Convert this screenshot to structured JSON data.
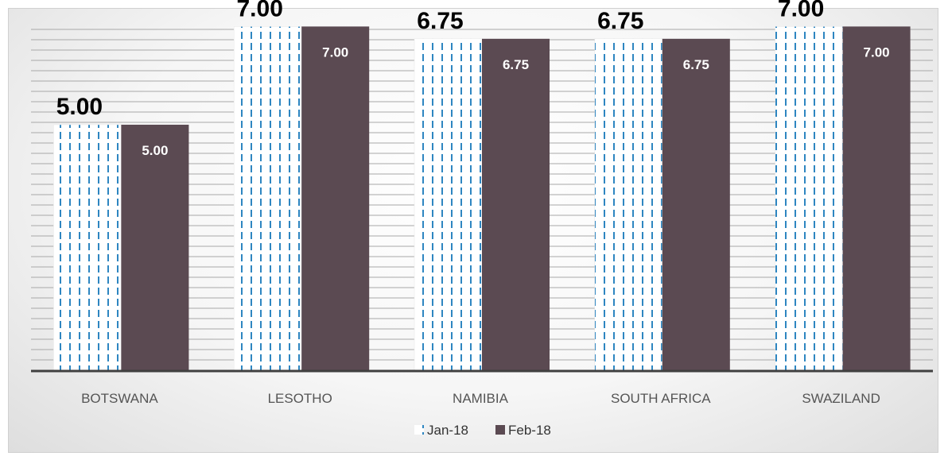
{
  "chart_data": {
    "type": "bar",
    "title": "",
    "xlabel": "",
    "ylabel": "",
    "ylim": [
      0,
      7.2
    ],
    "grid": true,
    "legend_position": "bottom",
    "categories": [
      "BOTSWANA",
      "LESOTHO",
      "NAMIBIA",
      "SOUTH AFRICA",
      "SWAZILAND"
    ],
    "series": [
      {
        "name": "Jan-18",
        "values": [
          5.0,
          7.0,
          6.75,
          6.75,
          7.0
        ],
        "labels": [
          "5.00",
          "7.00",
          "6.75",
          "6.75",
          "7.00"
        ],
        "color": "#2e86c1",
        "pattern": "dashed-vertical"
      },
      {
        "name": "Feb-18",
        "values": [
          5.0,
          7.0,
          6.75,
          6.75,
          7.0
        ],
        "labels": [
          "5.00",
          "7.00",
          "6.75",
          "6.75",
          "7.00"
        ],
        "color": "#5b4a52",
        "pattern": "solid"
      }
    ]
  }
}
